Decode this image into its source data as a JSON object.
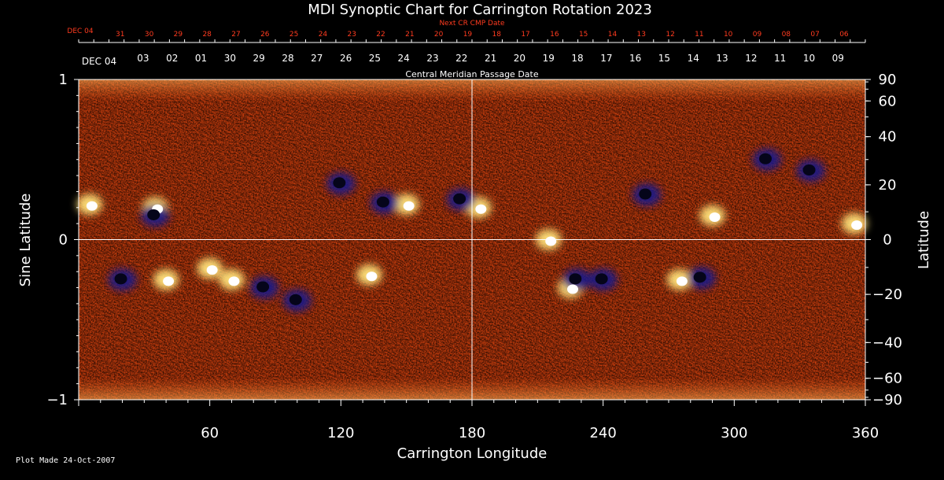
{
  "chart_data": {
    "type": "heatmap",
    "title": "MDI Synoptic Chart for Carrington Rotation 2023",
    "xlabel": "Carrington Longitude",
    "ylabel_left": "Sine Latitude",
    "ylabel_right": "Latitude",
    "xlim": [
      0,
      360
    ],
    "ylim": [
      -1,
      1
    ],
    "x_ticks": [
      60,
      120,
      180,
      240,
      300,
      360
    ],
    "y_ticks_left": [
      -1,
      0,
      1
    ],
    "y_ticks_left_labels": [
      "−1",
      "0",
      "1"
    ],
    "lat_ticks_right": [
      90,
      60,
      40,
      20,
      0,
      -20,
      -40,
      -60,
      -90
    ],
    "lat_ticks_right_labels": [
      "90",
      "60",
      "40",
      "20",
      "0",
      "−20",
      "−40",
      "−60",
      "−90"
    ],
    "top_axis_1": {
      "label": "Next CR CMP Date",
      "start_label": "DEC 04",
      "dates": [
        "31",
        "30",
        "29",
        "28",
        "27",
        "26",
        "25",
        "24",
        "23",
        "22",
        "21",
        "20",
        "19",
        "18",
        "17",
        "16",
        "15",
        "14",
        "13",
        "12",
        "11",
        "10",
        "09",
        "08",
        "07",
        "06"
      ],
      "color": "#ff3b1f"
    },
    "top_axis_2": {
      "label": "Central Meridian Passage Date",
      "start_label": "DEC 04",
      "dates": [
        "03",
        "02",
        "01",
        "30",
        "29",
        "28",
        "27",
        "26",
        "25",
        "24",
        "23",
        "22",
        "21",
        "20",
        "19",
        "18",
        "17",
        "16",
        "15",
        "14",
        "13",
        "12",
        "11",
        "10",
        "09"
      ]
    },
    "crosshair": {
      "longitude": 180,
      "sine_latitude": 0
    },
    "colorscale": [
      "#000000",
      "#1a1a8a",
      "#b81e05",
      "#ff6a1c",
      "#ffd23a",
      "#ffffff"
    ],
    "positive_regions": [
      {
        "lon": 60,
        "sinlat": -0.18
      },
      {
        "lon": 70,
        "sinlat": -0.25
      },
      {
        "lon": 150,
        "sinlat": 0.22
      },
      {
        "lon": 133,
        "sinlat": -0.22
      },
      {
        "lon": 183,
        "sinlat": 0.2
      },
      {
        "lon": 35,
        "sinlat": 0.2
      },
      {
        "lon": 225,
        "sinlat": -0.3
      },
      {
        "lon": 275,
        "sinlat": -0.25
      },
      {
        "lon": 290,
        "sinlat": 0.15
      },
      {
        "lon": 355,
        "sinlat": 0.1
      },
      {
        "lon": 5,
        "sinlat": 0.22
      },
      {
        "lon": 40,
        "sinlat": -0.25
      },
      {
        "lon": 215,
        "sinlat": 0
      }
    ],
    "negative_regions": [
      {
        "lon": 35,
        "sinlat": 0.15
      },
      {
        "lon": 85,
        "sinlat": -0.3
      },
      {
        "lon": 140,
        "sinlat": 0.23
      },
      {
        "lon": 175,
        "sinlat": 0.25
      },
      {
        "lon": 120,
        "sinlat": 0.35
      },
      {
        "lon": 240,
        "sinlat": -0.25
      },
      {
        "lon": 285,
        "sinlat": -0.24
      },
      {
        "lon": 335,
        "sinlat": 0.43
      },
      {
        "lon": 315,
        "sinlat": 0.5
      },
      {
        "lon": 228,
        "sinlat": -0.25
      },
      {
        "lon": 20,
        "sinlat": -0.25
      },
      {
        "lon": 100,
        "sinlat": -0.38
      },
      {
        "lon": 260,
        "sinlat": 0.28
      }
    ]
  },
  "footer": "Plot Made 24-Oct-2007"
}
